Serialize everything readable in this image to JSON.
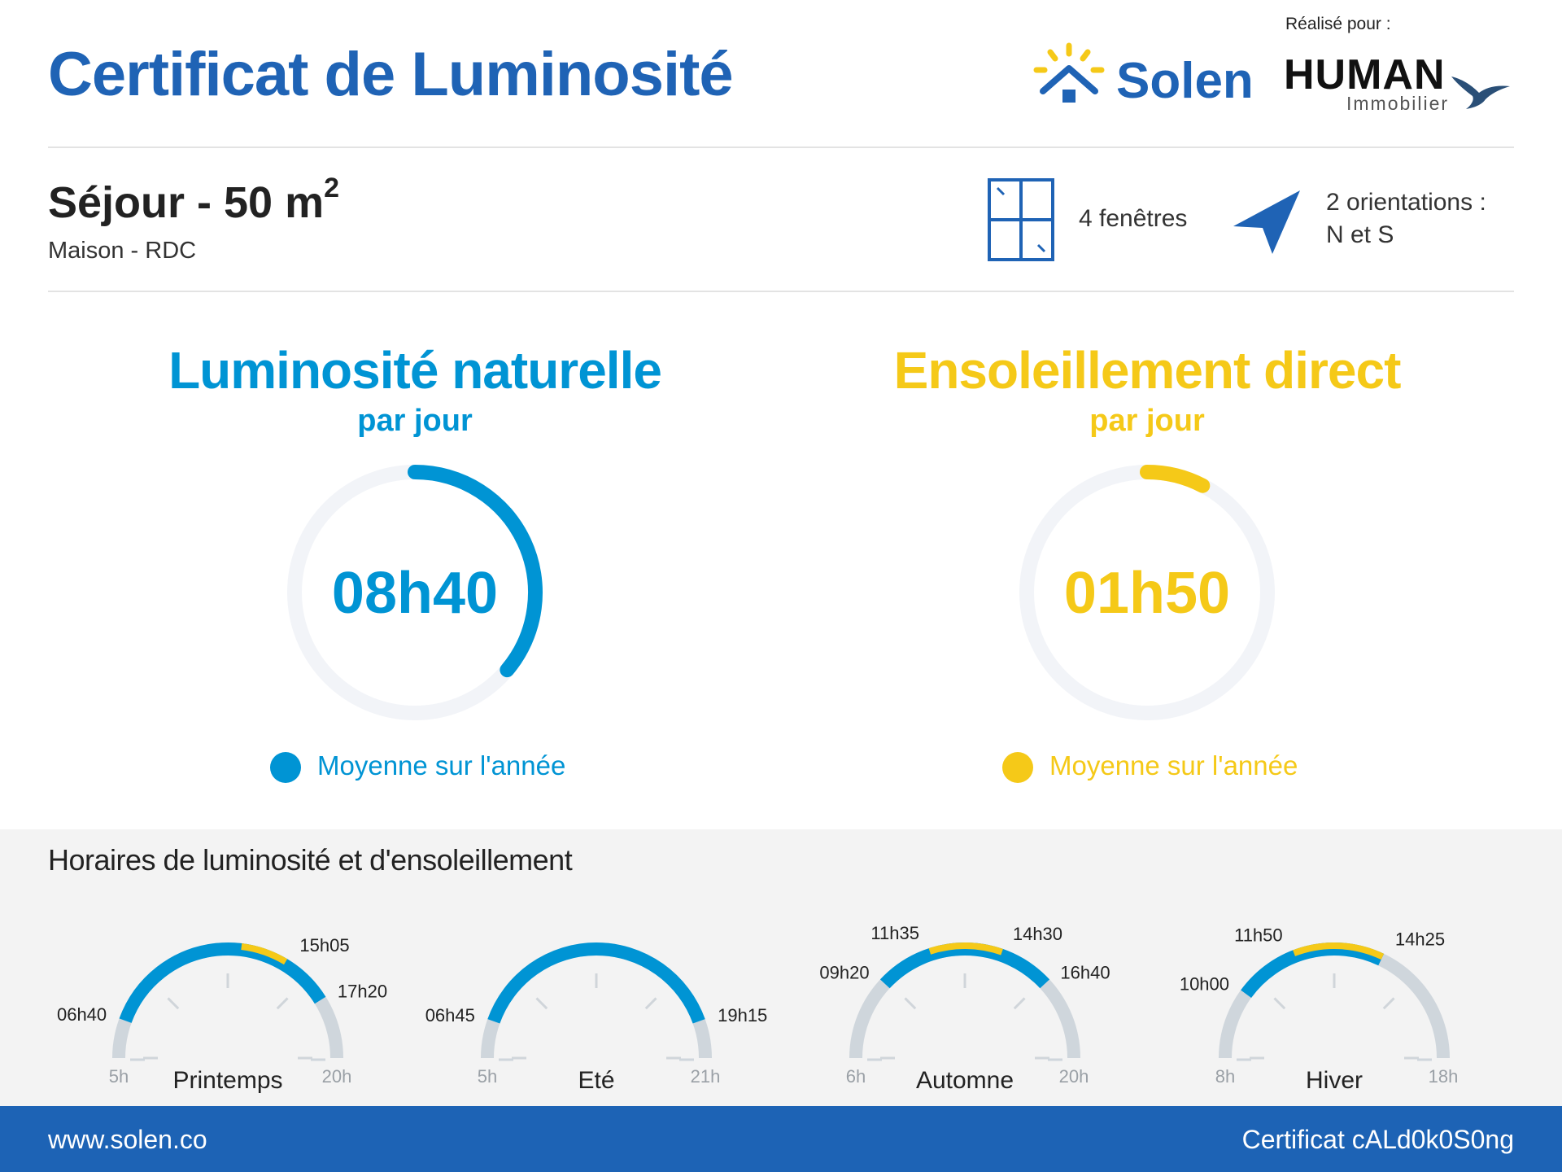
{
  "header": {
    "title": "Certificat de Luminosité",
    "brand_name": "Solen",
    "realise_pour": "Réalisé pour :",
    "client_name": "HUMAN",
    "client_sub": "Immobilier"
  },
  "room": {
    "name": "Séjour - 50 m",
    "name_sup": "2",
    "location": "Maison - RDC",
    "windows_text": "4 fenêtres",
    "orientations_line1": "2 orientations :",
    "orientations_line2": "N et S"
  },
  "metrics": [
    {
      "title": "Luminosité naturelle",
      "subtitle": "par jour",
      "value": "08h40",
      "hours_decimal": 8.667,
      "legend": "Moyenne sur l'année",
      "color": "#0094d4"
    },
    {
      "title": "Ensoleillement direct",
      "subtitle": "par jour",
      "value": "01h50",
      "hours_decimal": 1.833,
      "legend": "Moyenne sur l'année",
      "color": "#f5c918"
    }
  ],
  "schedule": {
    "title": "Horaires de luminosité et d'ensoleillement",
    "seasons": [
      {
        "name": "Printemps",
        "min_label": "5h",
        "max_label": "20h",
        "min_h": 5,
        "max_h": 20,
        "light": {
          "start": 6.667,
          "end": 17.333,
          "start_label": "06h40",
          "end_label": "17h20"
        },
        "sun": {
          "start": 13.083,
          "end": 15.083,
          "start_label": "",
          "end_label": "15h05"
        }
      },
      {
        "name": "Eté",
        "min_label": "5h",
        "max_label": "21h",
        "min_h": 5,
        "max_h": 21,
        "light": {
          "start": 6.75,
          "end": 19.25,
          "start_label": "06h45",
          "end_label": "19h15"
        },
        "sun": null
      },
      {
        "name": "Automne",
        "min_label": "6h",
        "max_label": "20h",
        "min_h": 6,
        "max_h": 20,
        "light": {
          "start": 9.333,
          "end": 16.667,
          "start_label": "09h20",
          "end_label": "16h40"
        },
        "sun": {
          "start": 11.583,
          "end": 14.5,
          "start_label": "11h35",
          "end_label": "14h30"
        }
      },
      {
        "name": "Hiver",
        "min_label": "8h",
        "max_label": "18h",
        "min_h": 8,
        "max_h": 18,
        "light": {
          "start": 10.0,
          "end": 14.417,
          "start_label": "10h00",
          "end_label": ""
        },
        "sun": {
          "start": 11.833,
          "end": 14.417,
          "start_label": "11h50",
          "end_label": "14h25"
        }
      }
    ]
  },
  "colors": {
    "brand_blue": "#1f63b5",
    "light_blue": "#0094d4",
    "sun_yellow": "#f5c918",
    "track_grey": "#cfd6dc",
    "ring_track": "#f2f4f8"
  },
  "footer": {
    "website": "www.solen.co",
    "certificate": "Certificat cALd0k0S0ng"
  }
}
